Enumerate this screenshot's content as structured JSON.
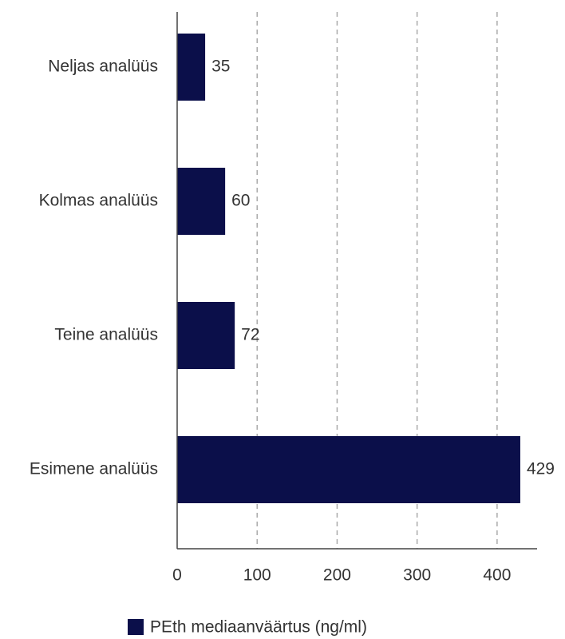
{
  "chart_data": {
    "type": "hbar",
    "categories": [
      "Neljas analüüs",
      "Kolmas analüüs",
      "Teine analüüs",
      "Esimene analüüs"
    ],
    "series": [
      {
        "name": "PEth mediaanväärtus (ng/ml)",
        "color": "#0b0f4a",
        "values": [
          35,
          60,
          72,
          429
        ]
      }
    ],
    "xlim": [
      0,
      450
    ],
    "xticks": [
      0,
      100,
      200,
      300,
      400
    ],
    "grid": true,
    "legend": "bottom"
  }
}
